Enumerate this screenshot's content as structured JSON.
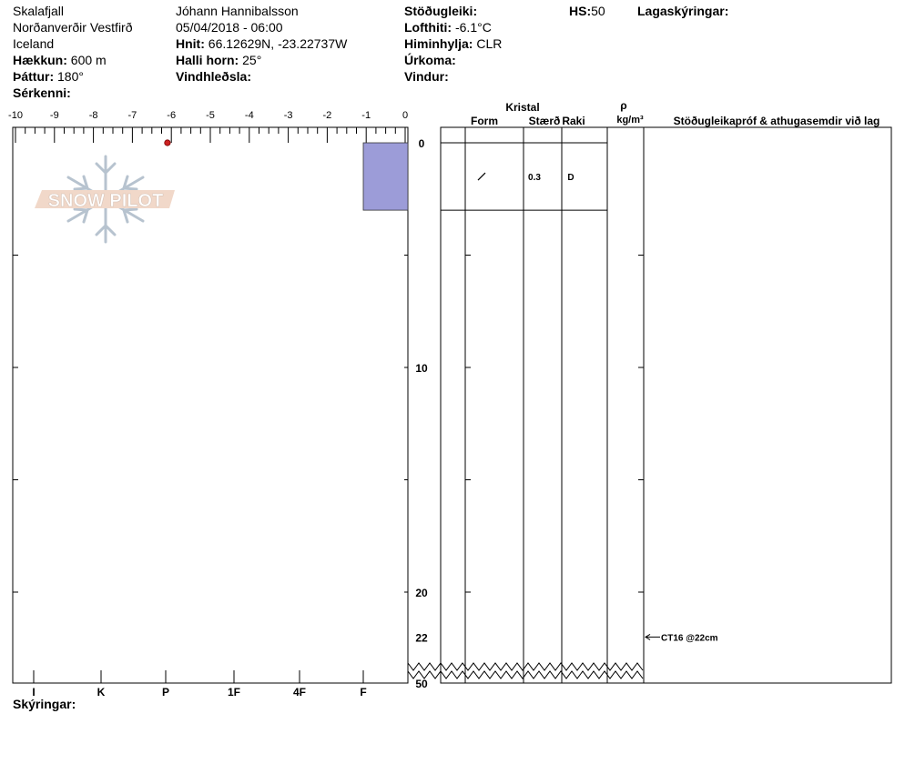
{
  "header": {
    "location": "Skalafjall",
    "region": "Norðanverðir Vestfirð",
    "country": "Iceland",
    "elevation_label": "Hækkun:",
    "elevation_value": "600 m",
    "aspect_label": "Þáttur:",
    "aspect_value": "180°",
    "features_label": "Sérkenni:",
    "observer": "Jóhann Hannibalsson",
    "datetime": "05/04/2018 - 06:00",
    "coords_label": "Hnit:",
    "coords_value": "66.12629N, -23.22737W",
    "slope_label": "Halli horn:",
    "slope_value": "25°",
    "windload_label": "Vindhleðsla:",
    "stability_label": "Stöðugleiki:",
    "airtemp_label": "Lofthiti:",
    "airtemp_value": "-6.1°C",
    "sky_label": "Himinhylja:",
    "sky_value": "CLR",
    "precip_label": "Úrkoma:",
    "wind_label": "Vindur:",
    "hs_label": "HS:",
    "hs_value": "50",
    "layer_notes_label": "Lagaskýringar:",
    "footer_notes_label": "Skýringar:"
  },
  "logo": {
    "text": "SNOW PILOT"
  },
  "columns": {
    "crystal": "Kristal",
    "form": "Form",
    "size": "Stærð",
    "moisture": "Raki",
    "rho": "ρ",
    "density_unit": "kg/m³",
    "tests": "Stöðugleikapróf & athugasemdir við lag"
  },
  "chart_data": {
    "type": "snow-profile",
    "temperature_axis": {
      "range": [
        -10,
        0
      ],
      "ticks": [
        "-10",
        "-9",
        "-8",
        "-7",
        "-6",
        "-5",
        "-4",
        "-3",
        "-2",
        "-1",
        "0"
      ]
    },
    "hardness_axis": {
      "ticks": [
        "I",
        "K",
        "P",
        "1F",
        "4F",
        "F"
      ]
    },
    "depth_axis": {
      "range": [
        0,
        22
      ],
      "ticks": [
        "0",
        "10",
        "20",
        "22"
      ],
      "break_label": "50"
    },
    "temperature_points": [
      {
        "depth": 0,
        "temp": -6.1
      }
    ],
    "layers": [
      {
        "top": 0,
        "bottom": 3,
        "hardness": "F",
        "form_symbol": "/",
        "size": "0.3",
        "moisture": "D"
      }
    ],
    "stability_tests": [
      {
        "depth": 22,
        "label": "CT16 @22cm"
      }
    ],
    "colors": {
      "layer_fill": "#9c9cd8",
      "temp_point": "#cc2222"
    }
  }
}
